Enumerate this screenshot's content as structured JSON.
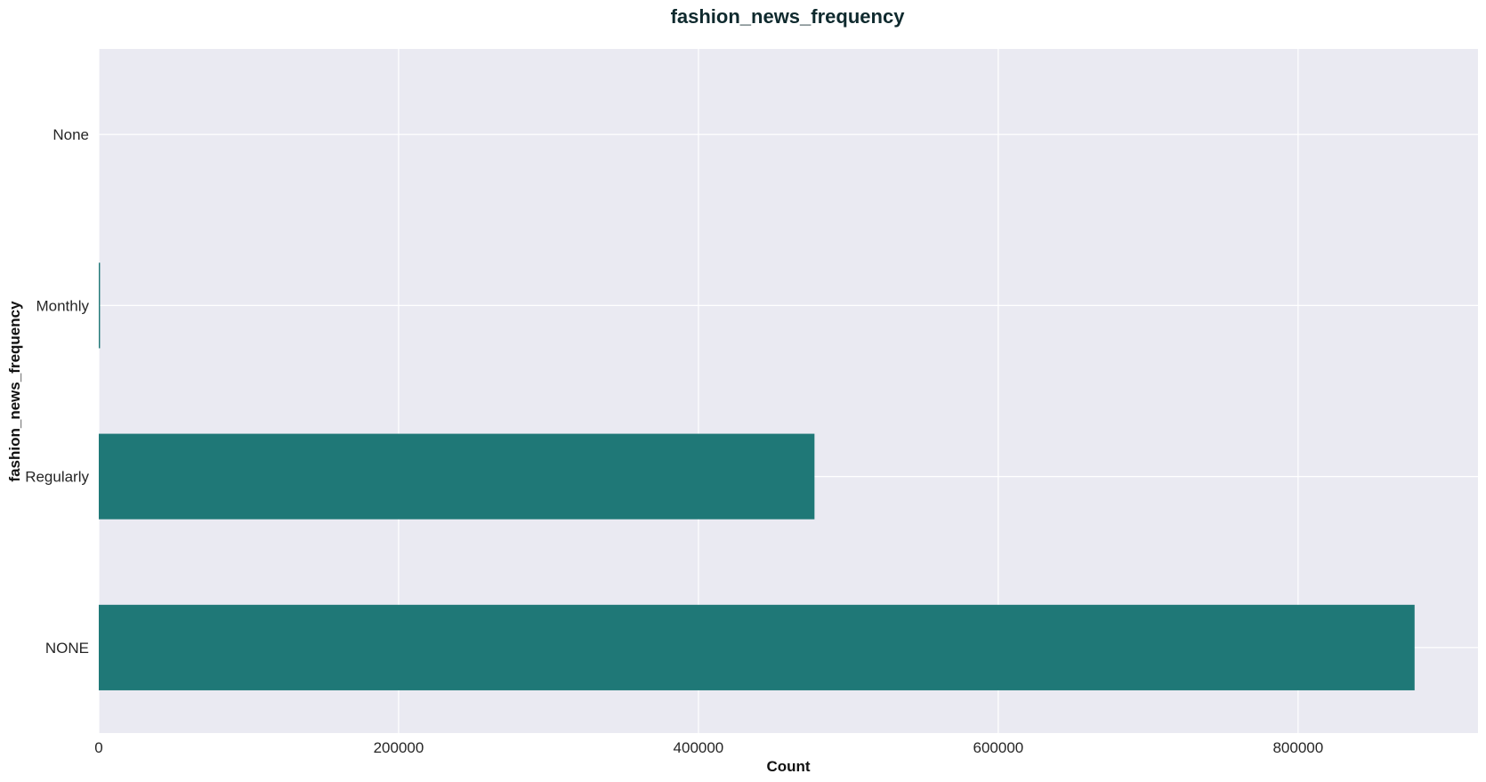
{
  "chart_data": {
    "type": "bar",
    "orientation": "horizontal",
    "title": "fashion_news_frequency",
    "xlabel": "Count",
    "ylabel": "fashion_news_frequency",
    "categories": [
      "None",
      "Monthly",
      "Regularly",
      "NONE"
    ],
    "values": [
      2,
      842,
      477416,
      877711
    ],
    "xlim": [
      0,
      920000
    ],
    "xticks": [
      0,
      200000,
      400000,
      600000,
      800000
    ],
    "xtick_labels": [
      "0",
      "200000",
      "400000",
      "600000",
      "800000"
    ],
    "grid": true,
    "legend": "none",
    "colors": {
      "bar": "#1f7877",
      "plot_background": "#eaeaf2",
      "grid": "#ffffff",
      "title": "#0f2a2e"
    }
  }
}
